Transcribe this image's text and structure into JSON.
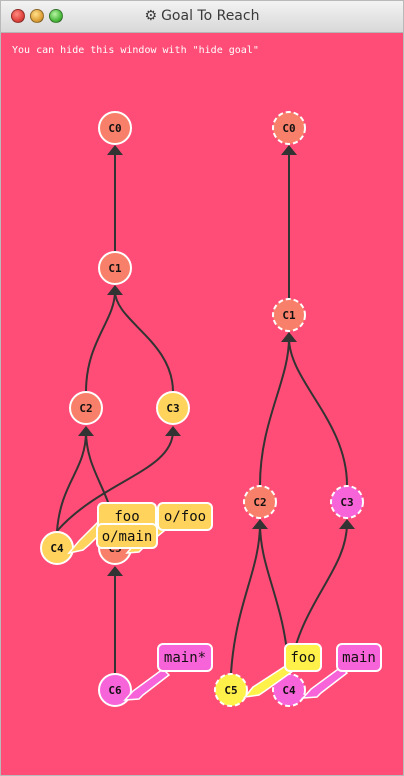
{
  "window": {
    "title": "Goal To Reach",
    "title_icon": "gear-icon",
    "background": "#ff4d77"
  },
  "hint": "You can hide this window with \"hide goal\"",
  "colors": {
    "orange": "#f8806a",
    "yellow": "#ffd35c",
    "magenta": "#f763d8",
    "edge": "#333333",
    "label_border": "#ffffff"
  },
  "left_tree": {
    "commits": [
      "C0",
      "C1",
      "C2",
      "C3",
      "C4",
      "C5",
      "C6"
    ],
    "branches": [
      "foo",
      "o/foo",
      "o/main",
      "main*"
    ]
  },
  "right_tree": {
    "commits": [
      "C0",
      "C1",
      "C2",
      "C3",
      "C5",
      "C4"
    ],
    "branches": [
      "foo",
      "main"
    ]
  }
}
